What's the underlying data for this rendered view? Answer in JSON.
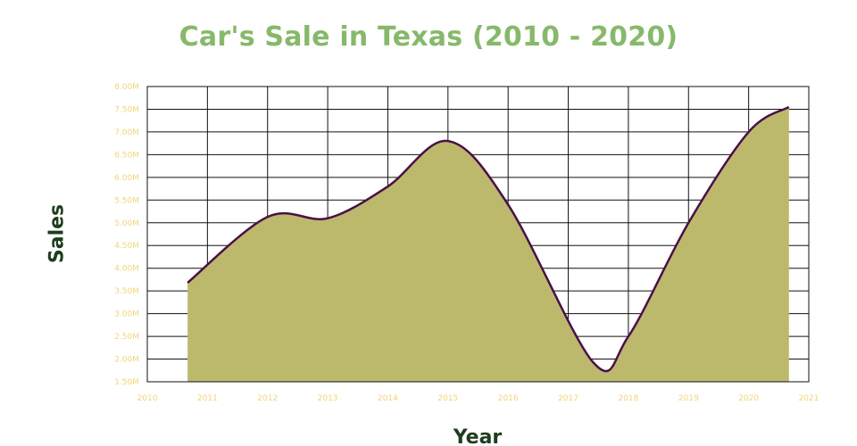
{
  "chart_data": {
    "type": "area",
    "title": "Car's Sale in Texas (2010 - 2020)",
    "xlabel": "Year",
    "ylabel": "Sales",
    "x": [
      2010.67,
      2012.0,
      2013.0,
      2014.0,
      2015.0,
      2016.0,
      2017.42,
      2018.0,
      2019.0,
      2020.0,
      2020.67
    ],
    "y": [
      3.68,
      5.13,
      5.1,
      5.8,
      6.8,
      5.4,
      1.92,
      2.5,
      5.0,
      7.0,
      7.55
    ],
    "xlim": [
      2010,
      2021
    ],
    "ylim": [
      1.5,
      8.0
    ],
    "x_ticks": [
      "2010",
      "2011",
      "2012",
      "2013",
      "2014",
      "2015",
      "2016",
      "2017",
      "2018",
      "2019",
      "2020",
      "2021"
    ],
    "y_ticks": [
      "1.50M",
      "2.00M",
      "2.50M",
      "3.00M",
      "3.50M",
      "4.00M",
      "4.50M",
      "5.00M",
      "5.50M",
      "6.00M",
      "6.50M",
      "7.00M",
      "7.50M",
      "8.00M"
    ],
    "grid": true,
    "legend": "none",
    "colors": {
      "fill": "#bcb96d",
      "line": "#4a1048",
      "title": "#86b96a",
      "axis_title": "#1f3d1f",
      "tick_label": "#f2d47a",
      "grid": "#111111"
    }
  }
}
